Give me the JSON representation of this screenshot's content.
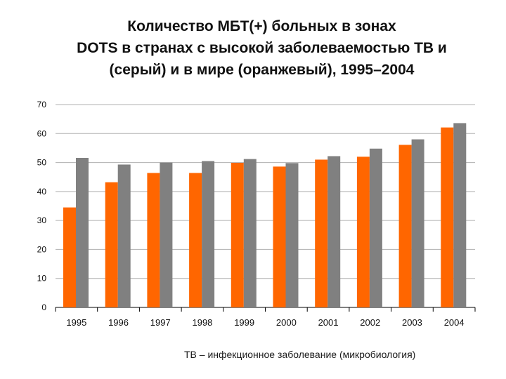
{
  "title_lines": [
    "Количество МБТ(+) больных в зонах",
    "DOTS в странах с высокой заболеваемостью ТВ и",
    "(серый) и в мире (оранжевый), 1995–2004"
  ],
  "footnote": "ТВ – инфекционное заболевание (микробиология)",
  "colors": {
    "world": "#ff6600",
    "high_burden": "#808080",
    "grid": "#b0b0b0",
    "axis": "#000000"
  },
  "chart_data": {
    "type": "bar",
    "title": "Количество МБТ(+) больных в зонах DOTS в странах с высокой заболеваемостью ТВ и (серый) и в мире (оранжевый), 1995–2004",
    "categories": [
      "1995",
      "1996",
      "1997",
      "1998",
      "1999",
      "2000",
      "2001",
      "2002",
      "2003",
      "2004"
    ],
    "series": [
      {
        "name": "мир (оранжевый)",
        "color": "#ff6600",
        "values": [
          34.5,
          43.2,
          46.4,
          46.4,
          49.9,
          48.6,
          51.0,
          52.0,
          56.1,
          62.1
        ]
      },
      {
        "name": "страны с высокой заболеваемостью ТВ (серый)",
        "color": "#808080",
        "values": [
          51.6,
          49.3,
          50.0,
          50.5,
          51.2,
          49.8,
          52.2,
          54.8,
          58.0,
          63.6
        ]
      }
    ],
    "ylim": [
      0,
      70
    ],
    "yticks": [
      "0",
      "10",
      "20",
      "30",
      "40",
      "50",
      "60",
      "70"
    ],
    "grid": true,
    "xlabel": "",
    "ylabel": ""
  }
}
